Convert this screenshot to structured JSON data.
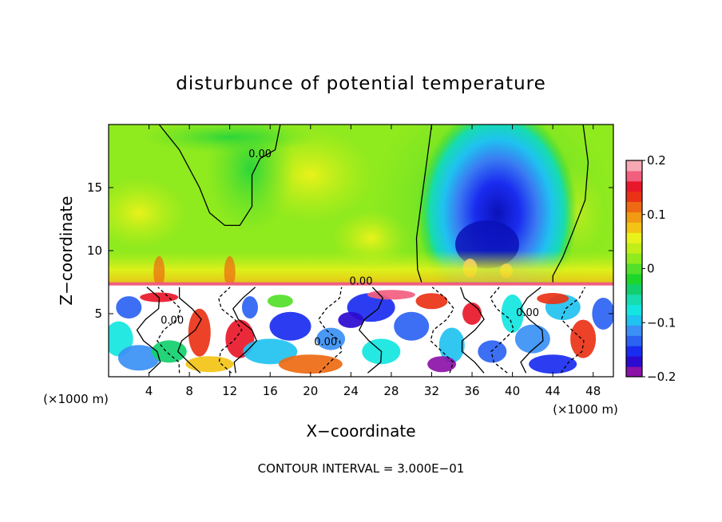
{
  "chart_data": {
    "type": "heatmap",
    "title": "disturbunce of potential temperature",
    "xlabel": "X−coordinate",
    "ylabel": "Z−coordinate",
    "x_units_left": "(×1000 m)",
    "x_units_right": "(×1000 m)",
    "xlim": [
      0,
      50
    ],
    "ylim": [
      0,
      20
    ],
    "x_ticks": [
      4,
      8,
      12,
      16,
      20,
      24,
      28,
      32,
      36,
      40,
      44,
      48
    ],
    "y_ticks": [
      5,
      10,
      15
    ],
    "footer": "CONTOUR INTERVAL = 3.000E−01",
    "colorbar": {
      "min": -0.2,
      "max": 0.2,
      "tick_values": [
        0.2,
        0.1,
        0,
        -0.1,
        -0.2
      ],
      "tick_labels": [
        "0.2",
        "0.1",
        "0",
        "−0.1",
        "−0.2"
      ],
      "colors": [
        "#8c12a8",
        "#2c0ad0",
        "#1a2cf0",
        "#2b63f2",
        "#3a90f5",
        "#1fc2f0",
        "#13e6e0",
        "#16dcb0",
        "#12cf6e",
        "#1ed52a",
        "#52e02a",
        "#8fea1e",
        "#c2ee18",
        "#eaf21a",
        "#f3c415",
        "#f19a14",
        "#ee6a12",
        "#ea3216",
        "#e8182a",
        "#f25e7e",
        "#f7a8b4"
      ]
    },
    "contour_labels": [
      {
        "text": "0.00",
        "x": 15.0,
        "y": 17.4
      },
      {
        "text": "0.00",
        "x": 25.0,
        "y": 7.3
      },
      {
        "text": "0.00",
        "x": 21.5,
        "y": 2.5
      },
      {
        "text": "0.00",
        "x": 6.3,
        "y": 4.2
      },
      {
        "text": "0.00",
        "x": 41.5,
        "y": 4.8
      }
    ],
    "grid": false
  }
}
